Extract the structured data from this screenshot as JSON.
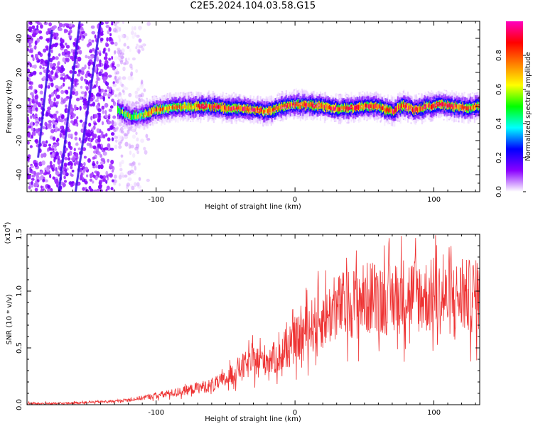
{
  "title": "C2E5.2024.104.03.58.G15",
  "chart_data": [
    {
      "type": "heatmap",
      "xlabel": "Height of straight line (km)",
      "ylabel": "Frequency (Hz)",
      "xlim": [
        -193,
        133
      ],
      "ylim": [
        -50,
        50
      ],
      "xticks": [
        -100,
        0,
        100
      ],
      "yticks": [
        -40,
        -20,
        0,
        20,
        40
      ],
      "colorbar": {
        "label": "Normalized spectral amplitude",
        "range": [
          0,
          1
        ],
        "ticks": [
          "0.0",
          "0.2",
          "0.4",
          "0.6",
          "0.8"
        ],
        "colors": [
          "#ffffff",
          "#8a00ff",
          "#0000ff",
          "#00ffff",
          "#00ff00",
          "#ffff00",
          "#ff7f00",
          "#ff0000",
          "#ff00c0"
        ]
      },
      "signal_trace": {
        "x": [
          -128,
          -120,
          -110,
          -100,
          -90,
          -80,
          -70,
          -60,
          -50,
          -40,
          -30,
          -20,
          -10,
          0,
          10,
          20,
          30,
          40,
          50,
          60,
          65,
          70,
          78,
          85,
          95,
          105,
          115,
          125,
          133
        ],
        "y": [
          -2,
          -6,
          -5,
          -2,
          -1,
          0,
          0,
          0,
          -1,
          -1,
          -2,
          -3,
          0,
          1,
          1,
          0,
          -1,
          -1,
          0,
          0,
          -2,
          -3,
          1,
          -2,
          0,
          1,
          0,
          -1,
          0
        ]
      },
      "noise_region_x": [
        -193,
        -105
      ]
    },
    {
      "type": "line",
      "xlabel": "Height of straight line (km)",
      "ylabel": "SNR (10 * v/v)",
      "y_multiplier": "(x10",
      "y_exponent": "4",
      "xlim": [
        -193,
        133
      ],
      "ylim": [
        0,
        1.5
      ],
      "xticks": [
        -100,
        0,
        100
      ],
      "yticks": [
        "0.0",
        "0.5",
        "1.0",
        "1.5"
      ],
      "color": "#ee3333",
      "series": [
        {
          "x": [
            -193,
            -170,
            -150,
            -130,
            -115,
            -100,
            -90,
            -80,
            -70,
            -60,
            -50,
            -40,
            -30,
            -20,
            -10,
            0,
            10,
            20,
            30,
            40,
            50,
            60,
            70,
            80,
            90,
            100,
            110,
            120,
            133
          ],
          "y": [
            0.01,
            0.01,
            0.02,
            0.03,
            0.05,
            0.08,
            0.1,
            0.12,
            0.15,
            0.17,
            0.22,
            0.32,
            0.38,
            0.4,
            0.42,
            0.55,
            0.68,
            0.75,
            0.85,
            0.9,
            0.93,
            0.95,
            0.92,
            0.98,
            0.96,
            0.95,
            0.93,
            0.95,
            0.95
          ]
        }
      ]
    }
  ]
}
